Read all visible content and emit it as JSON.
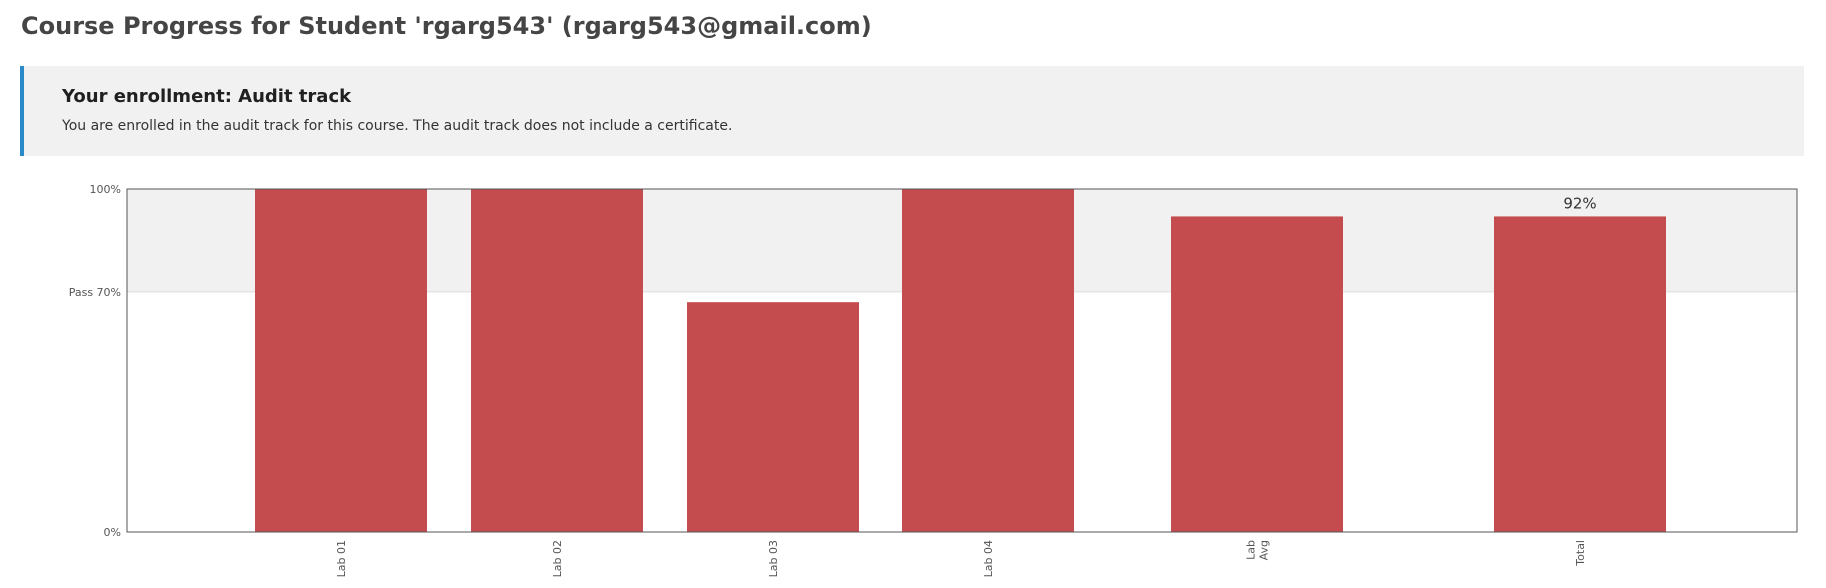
{
  "page": {
    "title": "Course Progress for Student 'rgarg543' (rgarg543@gmail.com)"
  },
  "enrollment": {
    "title": "Your enrollment: Audit track",
    "message": "You are enrolled in the audit track for this course. The audit track does not include a certificate."
  },
  "colors": {
    "bar": "#c44b4e",
    "accent_border": "#2a8ac8",
    "pass_band": "#f1f1f1"
  },
  "chart_data": {
    "type": "bar",
    "categories": [
      "Lab 01",
      "Lab 02",
      "Lab 03",
      "Lab 04",
      "Lab\nAvg",
      "Total"
    ],
    "values": [
      100,
      100,
      67,
      100,
      92,
      92
    ],
    "value_labels": [
      "",
      "",
      "",
      "",
      "",
      "92%"
    ],
    "ylim": [
      0,
      100
    ],
    "y_ticks": [
      {
        "value": 100,
        "label": "100%"
      },
      {
        "value": 70,
        "label": "Pass 70%"
      },
      {
        "value": 0,
        "label": "0%"
      }
    ],
    "pass_threshold": 70,
    "tick_label_orientation": "vertical"
  }
}
